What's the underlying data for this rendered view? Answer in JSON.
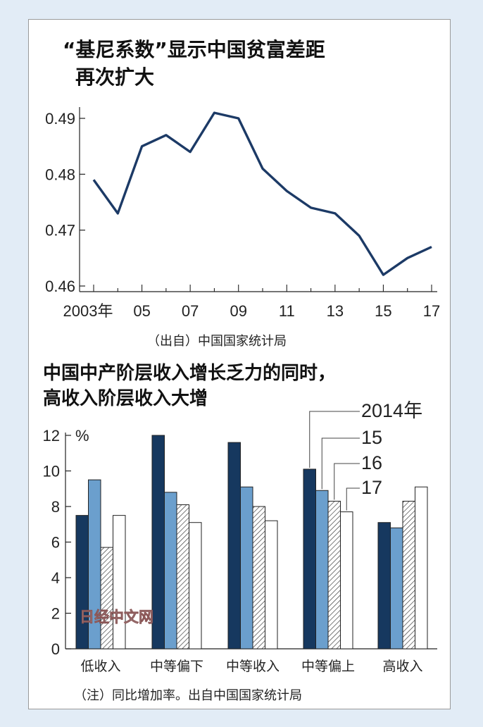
{
  "chart_data": [
    {
      "type": "line",
      "title": "“基尼系数”显示中国贫富差距再次扩大",
      "title_lines": [
        "“基尼系数”显示中国贫富差距",
        "再次扩大"
      ],
      "x": [
        2003,
        2004,
        2005,
        2006,
        2007,
        2008,
        2009,
        2010,
        2011,
        2012,
        2013,
        2014,
        2015,
        2016,
        2017
      ],
      "y": [
        0.479,
        0.473,
        0.485,
        0.487,
        0.484,
        0.491,
        0.49,
        0.481,
        0.477,
        0.474,
        0.473,
        0.469,
        0.462,
        0.465,
        0.467
      ],
      "x_tick_labels": [
        "2003年",
        "05",
        "07",
        "09",
        "11",
        "13",
        "15",
        "17"
      ],
      "y_tick_labels": [
        "0.46",
        "0.47",
        "0.48",
        "0.49"
      ],
      "ylim": [
        0.46,
        0.492
      ],
      "line_color": "#1c3a66",
      "source": "（出自）中国国家统计局"
    },
    {
      "type": "bar",
      "title": "中国中产阶层收入增长乏力的同时，高收入阶层收入大增",
      "title_lines": [
        "中国中产阶层收入增长乏力的同时，",
        "高收入阶层收入大增"
      ],
      "categories": [
        "低收入",
        "中等偏下",
        "中等收入",
        "中等偏上",
        "高收入"
      ],
      "series": [
        {
          "name": "2014年",
          "values": [
            7.5,
            12.0,
            11.6,
            10.1,
            7.1
          ],
          "color": "#16385f"
        },
        {
          "name": "15",
          "values": [
            9.5,
            8.8,
            9.1,
            8.9,
            6.8
          ],
          "color": "#6b9fcd"
        },
        {
          "name": "16",
          "values": [
            5.7,
            8.1,
            8.0,
            8.3,
            8.3
          ],
          "color": "#ffffff"
        },
        {
          "name": "17",
          "values": [
            7.5,
            7.1,
            7.2,
            7.7,
            9.1
          ],
          "color": "#ffffff"
        }
      ],
      "y_tick_labels": [
        "0",
        "2",
        "4",
        "6",
        "8",
        "10",
        "12"
      ],
      "yunit": "%",
      "ylim": [
        0,
        12
      ],
      "note": "（注）同比增加率。出自中国国家统计局",
      "watermark": "日经中文网"
    }
  ]
}
